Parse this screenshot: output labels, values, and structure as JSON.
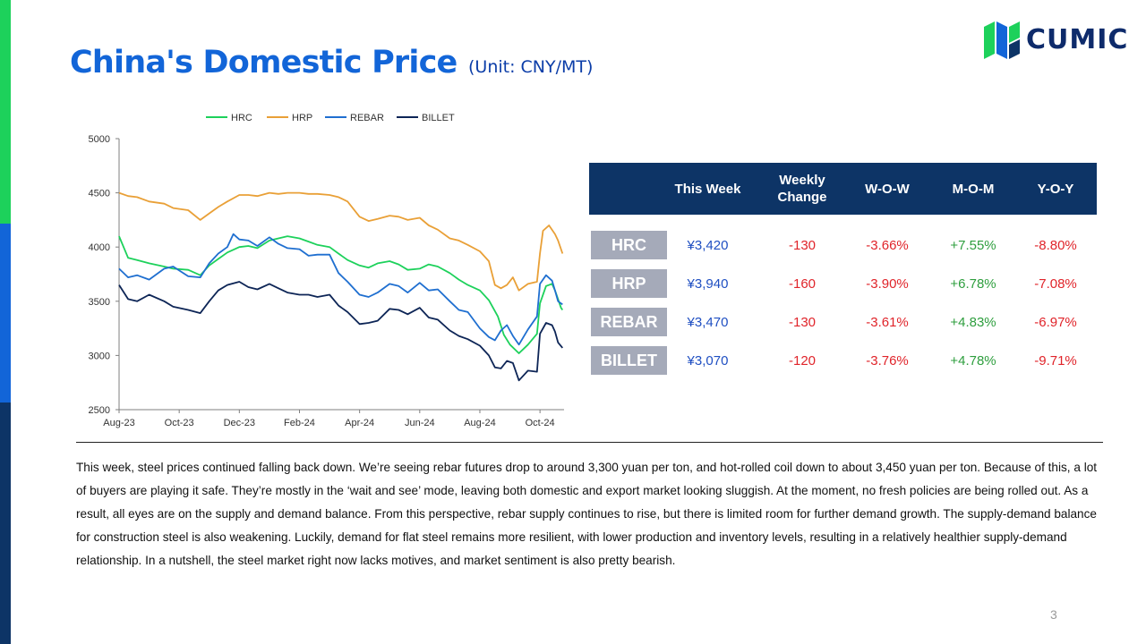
{
  "title": "China's Domestic Price",
  "unit": "(Unit: CNY/MT)",
  "logo_text": "CUMIC",
  "page_number": "3",
  "colors": {
    "title": "#1265D8",
    "table_header_bg": "#0D3466",
    "row_label_bg": "#A5AAB9",
    "price": "#1F4FC2",
    "negative": "#E0242A",
    "positive": "#2E9E3E",
    "left_bar": [
      "#1DD15B",
      "#1265D8",
      "#0D3466"
    ]
  },
  "chart_data": {
    "type": "line",
    "x_ticks": [
      "Aug-23",
      "Oct-23",
      "Dec-23",
      "Feb-24",
      "Apr-24",
      "Jun-24",
      "Aug-24",
      "Oct-24"
    ],
    "x_tick_months": [
      0,
      2,
      4,
      6,
      8,
      10,
      12,
      14
    ],
    "xlim": [
      0,
      14.8
    ],
    "ylim": [
      2500,
      5000
    ],
    "y_ticks": [
      2500,
      3000,
      3500,
      4000,
      4500,
      5000
    ],
    "legend_position": "top",
    "grid": false,
    "series": [
      {
        "name": "HRC",
        "color": "#1DD15B",
        "points": [
          [
            0,
            4100
          ],
          [
            0.3,
            3900
          ],
          [
            0.6,
            3880
          ],
          [
            1.0,
            3850
          ],
          [
            1.5,
            3820
          ],
          [
            1.8,
            3800
          ],
          [
            2.3,
            3790
          ],
          [
            2.7,
            3740
          ],
          [
            3.0,
            3830
          ],
          [
            3.3,
            3890
          ],
          [
            3.6,
            3950
          ],
          [
            4.0,
            4000
          ],
          [
            4.3,
            4010
          ],
          [
            4.6,
            3990
          ],
          [
            5.0,
            4060
          ],
          [
            5.3,
            4080
          ],
          [
            5.6,
            4100
          ],
          [
            6.0,
            4080
          ],
          [
            6.3,
            4050
          ],
          [
            6.6,
            4020
          ],
          [
            7.0,
            4000
          ],
          [
            7.3,
            3940
          ],
          [
            7.6,
            3880
          ],
          [
            8.0,
            3830
          ],
          [
            8.3,
            3810
          ],
          [
            8.6,
            3850
          ],
          [
            9.0,
            3870
          ],
          [
            9.3,
            3840
          ],
          [
            9.6,
            3790
          ],
          [
            10.0,
            3800
          ],
          [
            10.3,
            3840
          ],
          [
            10.6,
            3820
          ],
          [
            11.0,
            3760
          ],
          [
            11.3,
            3700
          ],
          [
            11.6,
            3650
          ],
          [
            12.0,
            3600
          ],
          [
            12.3,
            3510
          ],
          [
            12.6,
            3360
          ],
          [
            12.8,
            3190
          ],
          [
            13.0,
            3100
          ],
          [
            13.3,
            3020
          ],
          [
            13.6,
            3100
          ],
          [
            13.9,
            3200
          ],
          [
            14.0,
            3480
          ],
          [
            14.2,
            3640
          ],
          [
            14.4,
            3660
          ],
          [
            14.5,
            3600
          ],
          [
            14.6,
            3520
          ],
          [
            14.7,
            3440
          ],
          [
            14.75,
            3420
          ]
        ]
      },
      {
        "name": "HRP",
        "color": "#E9A037",
        "points": [
          [
            0,
            4500
          ],
          [
            0.3,
            4470
          ],
          [
            0.6,
            4460
          ],
          [
            1.0,
            4420
          ],
          [
            1.5,
            4400
          ],
          [
            1.8,
            4360
          ],
          [
            2.3,
            4340
          ],
          [
            2.7,
            4250
          ],
          [
            3.0,
            4310
          ],
          [
            3.3,
            4370
          ],
          [
            3.6,
            4420
          ],
          [
            4.0,
            4480
          ],
          [
            4.3,
            4480
          ],
          [
            4.6,
            4470
          ],
          [
            5.0,
            4500
          ],
          [
            5.3,
            4490
          ],
          [
            5.6,
            4500
          ],
          [
            6.0,
            4500
          ],
          [
            6.3,
            4490
          ],
          [
            6.6,
            4490
          ],
          [
            7.0,
            4480
          ],
          [
            7.3,
            4460
          ],
          [
            7.6,
            4420
          ],
          [
            8.0,
            4280
          ],
          [
            8.3,
            4240
          ],
          [
            8.6,
            4260
          ],
          [
            9.0,
            4290
          ],
          [
            9.3,
            4280
          ],
          [
            9.6,
            4250
          ],
          [
            10.0,
            4270
          ],
          [
            10.3,
            4200
          ],
          [
            10.6,
            4160
          ],
          [
            11.0,
            4080
          ],
          [
            11.3,
            4060
          ],
          [
            11.6,
            4020
          ],
          [
            12.0,
            3960
          ],
          [
            12.3,
            3870
          ],
          [
            12.5,
            3650
          ],
          [
            12.7,
            3620
          ],
          [
            12.9,
            3650
          ],
          [
            13.1,
            3720
          ],
          [
            13.3,
            3600
          ],
          [
            13.6,
            3660
          ],
          [
            13.9,
            3680
          ],
          [
            14.0,
            3940
          ],
          [
            14.1,
            4150
          ],
          [
            14.3,
            4200
          ],
          [
            14.5,
            4120
          ],
          [
            14.6,
            4060
          ],
          [
            14.75,
            3940
          ]
        ]
      },
      {
        "name": "REBAR",
        "color": "#1F6FD0",
        "points": [
          [
            0,
            3800
          ],
          [
            0.3,
            3720
          ],
          [
            0.6,
            3740
          ],
          [
            1.0,
            3700
          ],
          [
            1.5,
            3800
          ],
          [
            1.8,
            3820
          ],
          [
            2.3,
            3730
          ],
          [
            2.7,
            3720
          ],
          [
            3.0,
            3850
          ],
          [
            3.3,
            3940
          ],
          [
            3.6,
            4000
          ],
          [
            3.8,
            4120
          ],
          [
            4.0,
            4070
          ],
          [
            4.3,
            4060
          ],
          [
            4.6,
            4010
          ],
          [
            5.0,
            4090
          ],
          [
            5.3,
            4030
          ],
          [
            5.6,
            3990
          ],
          [
            6.0,
            3980
          ],
          [
            6.3,
            3920
          ],
          [
            6.6,
            3930
          ],
          [
            7.0,
            3930
          ],
          [
            7.3,
            3760
          ],
          [
            7.6,
            3680
          ],
          [
            8.0,
            3560
          ],
          [
            8.3,
            3540
          ],
          [
            8.6,
            3580
          ],
          [
            9.0,
            3660
          ],
          [
            9.3,
            3640
          ],
          [
            9.6,
            3580
          ],
          [
            10.0,
            3670
          ],
          [
            10.3,
            3600
          ],
          [
            10.6,
            3610
          ],
          [
            11.0,
            3500
          ],
          [
            11.3,
            3420
          ],
          [
            11.6,
            3400
          ],
          [
            12.0,
            3250
          ],
          [
            12.3,
            3170
          ],
          [
            12.5,
            3140
          ],
          [
            12.7,
            3230
          ],
          [
            12.9,
            3280
          ],
          [
            13.1,
            3180
          ],
          [
            13.3,
            3100
          ],
          [
            13.6,
            3240
          ],
          [
            13.9,
            3360
          ],
          [
            14.0,
            3660
          ],
          [
            14.2,
            3740
          ],
          [
            14.4,
            3690
          ],
          [
            14.5,
            3600
          ],
          [
            14.6,
            3500
          ],
          [
            14.75,
            3470
          ]
        ]
      },
      {
        "name": "BILLET",
        "color": "#0D2556",
        "points": [
          [
            0,
            3650
          ],
          [
            0.3,
            3520
          ],
          [
            0.6,
            3500
          ],
          [
            1.0,
            3560
          ],
          [
            1.5,
            3500
          ],
          [
            1.8,
            3450
          ],
          [
            2.3,
            3420
          ],
          [
            2.7,
            3390
          ],
          [
            3.0,
            3500
          ],
          [
            3.3,
            3600
          ],
          [
            3.6,
            3650
          ],
          [
            4.0,
            3680
          ],
          [
            4.3,
            3630
          ],
          [
            4.6,
            3610
          ],
          [
            5.0,
            3660
          ],
          [
            5.3,
            3620
          ],
          [
            5.6,
            3580
          ],
          [
            6.0,
            3560
          ],
          [
            6.3,
            3560
          ],
          [
            6.6,
            3540
          ],
          [
            7.0,
            3560
          ],
          [
            7.3,
            3460
          ],
          [
            7.6,
            3400
          ],
          [
            8.0,
            3290
          ],
          [
            8.3,
            3300
          ],
          [
            8.6,
            3320
          ],
          [
            9.0,
            3430
          ],
          [
            9.3,
            3420
          ],
          [
            9.6,
            3380
          ],
          [
            10.0,
            3440
          ],
          [
            10.3,
            3350
          ],
          [
            10.6,
            3330
          ],
          [
            11.0,
            3230
          ],
          [
            11.3,
            3180
          ],
          [
            11.6,
            3150
          ],
          [
            12.0,
            3090
          ],
          [
            12.3,
            3000
          ],
          [
            12.5,
            2890
          ],
          [
            12.7,
            2880
          ],
          [
            12.9,
            2950
          ],
          [
            13.1,
            2930
          ],
          [
            13.3,
            2770
          ],
          [
            13.6,
            2860
          ],
          [
            13.9,
            2850
          ],
          [
            14.0,
            3200
          ],
          [
            14.2,
            3300
          ],
          [
            14.4,
            3280
          ],
          [
            14.5,
            3220
          ],
          [
            14.6,
            3120
          ],
          [
            14.75,
            3070
          ]
        ]
      }
    ]
  },
  "table": {
    "headers": [
      "This Week",
      "Weekly Change",
      "W-O-W",
      "M-O-M",
      "Y-O-Y"
    ],
    "rows": [
      {
        "label": "HRC",
        "this_week": "¥3,420",
        "weekly_change": "-130",
        "wow": "-3.66%",
        "mom": "+7.55%",
        "yoy": "-8.80%"
      },
      {
        "label": "HRP",
        "this_week": "¥3,940",
        "weekly_change": "-160",
        "wow": "-3.90%",
        "mom": "+6.78%",
        "yoy": "-7.08%"
      },
      {
        "label": "REBAR",
        "this_week": "¥3,470",
        "weekly_change": "-130",
        "wow": "-3.61%",
        "mom": "+4.83%",
        "yoy": "-6.97%"
      },
      {
        "label": "BILLET",
        "this_week": "¥3,070",
        "weekly_change": "-120",
        "wow": "-3.76%",
        "mom": "+4.78%",
        "yoy": "-9.71%"
      }
    ]
  },
  "paragraph": "This week, steel prices continued falling back down. We’re seeing rebar futures drop to around 3,300 yuan per ton, and hot-rolled coil down to about 3,450 yuan per ton. Because of this, a lot of buyers are playing it safe. They’re mostly in the ‘wait and see’ mode, leaving both domestic and export market looking sluggish. At the moment, no fresh policies are being rolled out. As a result, all eyes are on the supply and demand balance. From this perspective, rebar supply continues to rise, but there is limited room for further demand growth. The supply-demand balance for construction steel is also weakening. Luckily, demand for flat steel remains more resilient, with lower production and inventory levels, resulting in a relatively healthier supply-demand relationship. In a nutshell, the steel market right now lacks motives, and market sentiment is also pretty bearish."
}
